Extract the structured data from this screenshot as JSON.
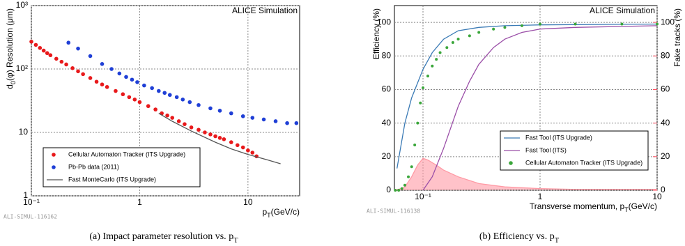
{
  "chart_data": [
    {
      "type": "scatter",
      "logx": true,
      "logy": true,
      "grid": true,
      "tag": "ALICE Simulation",
      "source": "ALI-SIMUL-116162",
      "caption": {
        "prefix": "(a) Impact parameter resolution vs. ",
        "symbol": "p",
        "subscript": "T"
      },
      "x_label": {
        "symbol": "p",
        "subscript": "T",
        "unit": "(GeV/c)"
      },
      "y_label": {
        "symbol": "d",
        "subscript": "0",
        "text": "(φ) Resolution  (μm)"
      },
      "xlim": [
        0.1,
        30
      ],
      "ylim": [
        1,
        1000
      ],
      "xticks": [
        {
          "value": 0.1,
          "label": "10⁻¹"
        },
        1,
        10
      ],
      "yticks": [
        1,
        10,
        {
          "value": 100,
          "label": "10²"
        },
        {
          "value": 1000,
          "label": "10³"
        }
      ],
      "series": [
        {
          "name": "Cellular Automaton Tracker (ITS Upgrade)",
          "color": "#e8191b",
          "mark": "marker",
          "x": [
            0.1,
            0.11,
            0.12,
            0.13,
            0.14,
            0.15,
            0.17,
            0.19,
            0.21,
            0.24,
            0.27,
            0.3,
            0.35,
            0.4,
            0.45,
            0.5,
            0.6,
            0.7,
            0.8,
            0.9,
            1.0,
            1.2,
            1.4,
            1.6,
            1.8,
            2.0,
            2.3,
            2.6,
            3.0,
            3.5,
            4.0,
            4.5,
            5.0,
            5.5,
            6.0,
            7.0,
            8.0,
            9.0,
            10.0,
            11.0,
            12.0
          ],
          "values": [
            270,
            240,
            215,
            195,
            178,
            165,
            145,
            130,
            118,
            103,
            92,
            83,
            72,
            63,
            57,
            52,
            45,
            40,
            36,
            33,
            30,
            26,
            23,
            20,
            18.5,
            17,
            15,
            13.5,
            12,
            11,
            10,
            9.3,
            8.7,
            8.2,
            7.8,
            7,
            6.3,
            5.8,
            5.2,
            4.8,
            4.2
          ]
        },
        {
          "name": "Pb-Pb data  (2011)",
          "color": "#1f3fd6",
          "mark": "marker",
          "x": [
            0.22,
            0.27,
            0.35,
            0.45,
            0.55,
            0.65,
            0.75,
            0.85,
            0.95,
            1.1,
            1.3,
            1.5,
            1.7,
            1.9,
            2.2,
            2.5,
            2.9,
            3.5,
            4.5,
            5.5,
            7.0,
            9.0,
            11.0,
            14.0,
            18.0,
            23.0,
            28.0
          ],
          "values": [
            260,
            210,
            160,
            120,
            100,
            85,
            75,
            68,
            62,
            55,
            50,
            45,
            42,
            39,
            36,
            33,
            30,
            27,
            24,
            22,
            20,
            18,
            17,
            16,
            15,
            14,
            14
          ]
        },
        {
          "name": "Fast MonteCarlo (ITS Upgrade)",
          "color": "#555555",
          "mark": "line",
          "x": [
            1.5,
            2,
            3,
            5,
            7,
            10,
            15,
            20
          ],
          "values": [
            20,
            15,
            10.5,
            7,
            5.5,
            4.5,
            3.7,
            3.2
          ]
        }
      ]
    },
    {
      "type": "line",
      "logx": true,
      "logy": false,
      "grid": true,
      "tag": "ALICE Simulation",
      "source": "ALI-SIMUL-116138",
      "caption": {
        "prefix": "(b) Efficiency vs. ",
        "symbol": "p",
        "subscript": "T"
      },
      "x_label": {
        "prefix": "Transverse momentum, ",
        "symbol": "p",
        "subscript": "T",
        "unit": "(GeV/c)"
      },
      "y_label": {
        "text": "Efficiency (%)"
      },
      "y2_label": "Fake tracks (%)",
      "y2_color": "#ff4d5e",
      "xlim": [
        0.057,
        10
      ],
      "ylim": [
        0,
        110
      ],
      "y2lim": [
        0,
        110
      ],
      "xticks": [
        {
          "value": 0.1,
          "label": "10⁻¹"
        },
        1,
        10
      ],
      "yticks": [
        0,
        20,
        40,
        60,
        80,
        100
      ],
      "y2ticks": [
        0,
        20,
        40,
        60,
        80,
        100
      ],
      "series": [
        {
          "color": "#ff9aa5",
          "mark": "area",
          "axis": "y2",
          "x": [
            0.057,
            0.065,
            0.07,
            0.08,
            0.09,
            0.1,
            0.11,
            0.13,
            0.15,
            0.2,
            0.3,
            0.5,
            1,
            2,
            10
          ],
          "values": [
            0,
            1,
            2,
            8,
            15,
            19,
            18,
            15,
            12,
            8,
            4,
            2,
            1,
            0.5,
            0.5
          ]
        },
        {
          "name": "Fast Tool (ITS Upgrade)",
          "color": "#3a7ab5",
          "mark": "line",
          "x": [
            0.06,
            0.07,
            0.08,
            0.1,
            0.12,
            0.15,
            0.2,
            0.3,
            0.5,
            1,
            10
          ],
          "values": [
            13,
            40,
            55,
            72,
            82,
            90,
            95,
            97,
            98,
            98.5,
            99
          ]
        },
        {
          "name": "Fast Tool (ITS)",
          "color": "#9b4fa8",
          "mark": "line",
          "x": [
            0.1,
            0.12,
            0.15,
            0.2,
            0.25,
            0.3,
            0.4,
            0.5,
            0.7,
            1,
            2,
            10
          ],
          "values": [
            0,
            8,
            25,
            50,
            65,
            75,
            85,
            90,
            94,
            96,
            97,
            98
          ]
        },
        {
          "name": "Cellular Automaton Tracker (ITS Upgrade)",
          "color": "#3aa63a",
          "mark": "marker",
          "x": [
            0.058,
            0.062,
            0.066,
            0.07,
            0.075,
            0.08,
            0.085,
            0.09,
            0.095,
            0.1,
            0.11,
            0.12,
            0.13,
            0.14,
            0.16,
            0.18,
            0.2,
            0.25,
            0.3,
            0.4,
            0.5,
            0.7,
            1,
            2,
            5,
            10
          ],
          "values": [
            0,
            0,
            1,
            3,
            8,
            14,
            27,
            40,
            52,
            61,
            68,
            74,
            78,
            82,
            85,
            88,
            90,
            92,
            94,
            96,
            97,
            98,
            99,
            99,
            99,
            99
          ]
        }
      ]
    }
  ]
}
